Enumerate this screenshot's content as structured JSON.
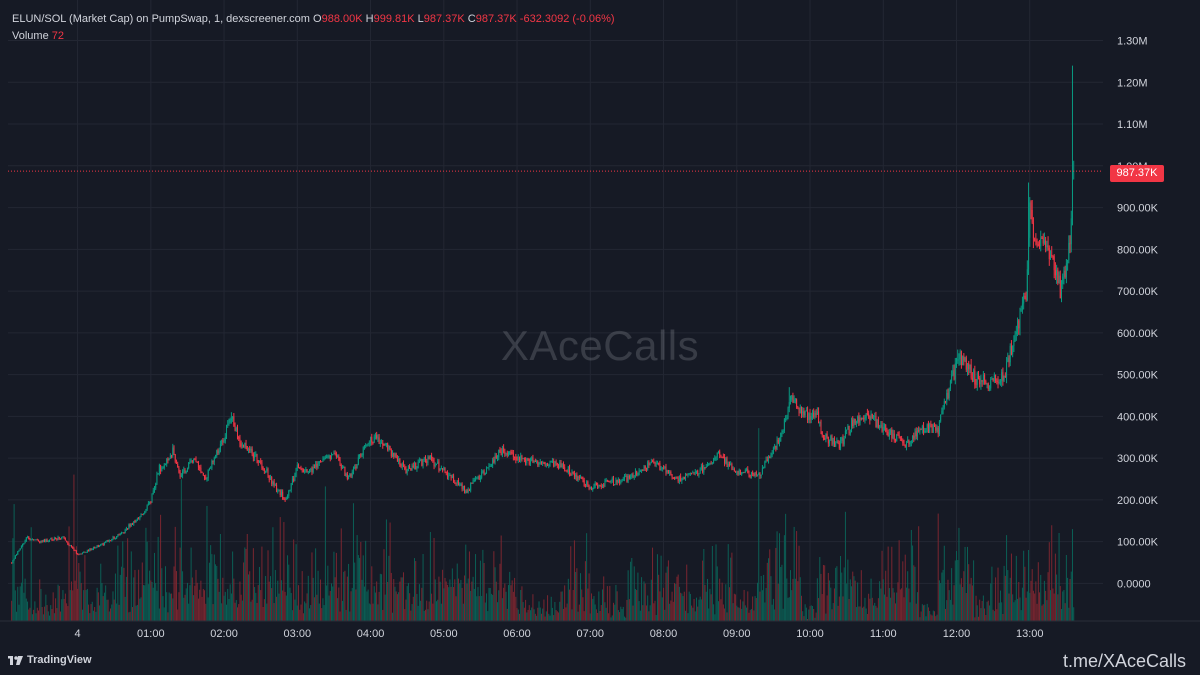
{
  "header": {
    "symbol": "ELUN/SOL (Market Cap) on PumpSwap, 1, dexscreener.com",
    "o_label": "O",
    "o_value": "988.00K",
    "h_label": "H",
    "h_value": "999.81K",
    "l_label": "L",
    "l_value": "987.37K",
    "c_label": "C",
    "c_value": "987.37K",
    "change": "-632.3092 (-0.06%)",
    "volume_label": "Volume",
    "volume_value": "72"
  },
  "watermark": "XAceCalls",
  "footer": {
    "brand": "TradingView",
    "link": "t.me/XAceCalls"
  },
  "colors": {
    "background": "#161a25",
    "grid": "#232733",
    "up": "#089981",
    "down": "#f23645",
    "up_volume": "#0b5f55",
    "down_volume": "#7a2630",
    "axis_text": "#d1d4dc"
  },
  "chart_data": {
    "type": "candlestick",
    "y_ticks": [
      "1.30M",
      "1.20M",
      "1.10M",
      "1.00M",
      "900.00K",
      "800.00K",
      "700.00K",
      "600.00K",
      "500.00K",
      "400.00K",
      "300.00K",
      "200.00K",
      "100.00K",
      "0.0000"
    ],
    "y_tick_values": [
      1300000,
      1200000,
      1100000,
      1000000,
      900000,
      800000,
      700000,
      600000,
      500000,
      400000,
      300000,
      200000,
      100000,
      0
    ],
    "x_ticks": [
      "4",
      "01:00",
      "02:00",
      "03:00",
      "04:00",
      "05:00",
      "06:00",
      "07:00",
      "08:00",
      "09:00",
      "10:00",
      "11:00",
      "12:00",
      "13:00"
    ],
    "x_tick_hours": [
      0,
      1,
      2,
      3,
      4,
      5,
      6,
      7,
      8,
      9,
      10,
      11,
      12,
      13
    ],
    "x_range_hours": [
      -0.95,
      14.0
    ],
    "ylim": [
      -90000,
      1330000
    ],
    "last_price": 987370,
    "last_price_label": "987.37K",
    "interval_minutes": 1,
    "price_path": [
      [
        -0.9,
        50000
      ],
      [
        -0.7,
        110000
      ],
      [
        -0.5,
        100000
      ],
      [
        -0.2,
        110000
      ],
      [
        0.0,
        70000
      ],
      [
        0.3,
        90000
      ],
      [
        0.6,
        120000
      ],
      [
        0.9,
        170000
      ],
      [
        1.0,
        200000
      ],
      [
        1.1,
        270000
      ],
      [
        1.3,
        320000
      ],
      [
        1.4,
        260000
      ],
      [
        1.6,
        300000
      ],
      [
        1.75,
        250000
      ],
      [
        2.0,
        350000
      ],
      [
        2.1,
        400000
      ],
      [
        2.2,
        340000
      ],
      [
        2.5,
        290000
      ],
      [
        2.7,
        230000
      ],
      [
        2.85,
        200000
      ],
      [
        3.0,
        280000
      ],
      [
        3.2,
        270000
      ],
      [
        3.5,
        310000
      ],
      [
        3.7,
        250000
      ],
      [
        4.0,
        350000
      ],
      [
        4.2,
        330000
      ],
      [
        4.5,
        270000
      ],
      [
        4.8,
        300000
      ],
      [
        5.0,
        270000
      ],
      [
        5.3,
        220000
      ],
      [
        5.5,
        260000
      ],
      [
        5.8,
        320000
      ],
      [
        6.0,
        300000
      ],
      [
        6.3,
        290000
      ],
      [
        6.6,
        285000
      ],
      [
        7.0,
        230000
      ],
      [
        7.2,
        240000
      ],
      [
        7.5,
        250000
      ],
      [
        7.85,
        290000
      ],
      [
        8.2,
        250000
      ],
      [
        8.5,
        270000
      ],
      [
        8.75,
        305000
      ],
      [
        9.0,
        270000
      ],
      [
        9.3,
        260000
      ],
      [
        9.6,
        350000
      ],
      [
        9.75,
        440000
      ],
      [
        9.9,
        400000
      ],
      [
        10.1,
        400000
      ],
      [
        10.2,
        350000
      ],
      [
        10.4,
        330000
      ],
      [
        10.6,
        390000
      ],
      [
        10.8,
        400000
      ],
      [
        11.1,
        360000
      ],
      [
        11.3,
        330000
      ],
      [
        11.5,
        370000
      ],
      [
        11.75,
        370000
      ],
      [
        11.9,
        470000
      ],
      [
        12.05,
        545000
      ],
      [
        12.25,
        490000
      ],
      [
        12.45,
        480000
      ],
      [
        12.65,
        500000
      ],
      [
        12.8,
        590000
      ],
      [
        12.95,
        700000
      ],
      [
        13.0,
        900000
      ],
      [
        13.1,
        810000
      ],
      [
        13.25,
        790000
      ],
      [
        13.35,
        760000
      ],
      [
        13.42,
        700000
      ],
      [
        13.5,
        770000
      ],
      [
        13.55,
        800000
      ],
      [
        13.6,
        987370
      ]
    ],
    "price_spikes": [
      [
        2.1,
        410000
      ],
      [
        9.72,
        470000
      ],
      [
        12.02,
        560000
      ],
      [
        12.98,
        960000
      ],
      [
        13.58,
        1240000
      ]
    ],
    "volume_spikes": [
      [
        -0.86,
        280000
      ],
      [
        0.95,
        190000
      ],
      [
        12.98,
        170000
      ],
      [
        13.58,
        220000
      ]
    ]
  }
}
